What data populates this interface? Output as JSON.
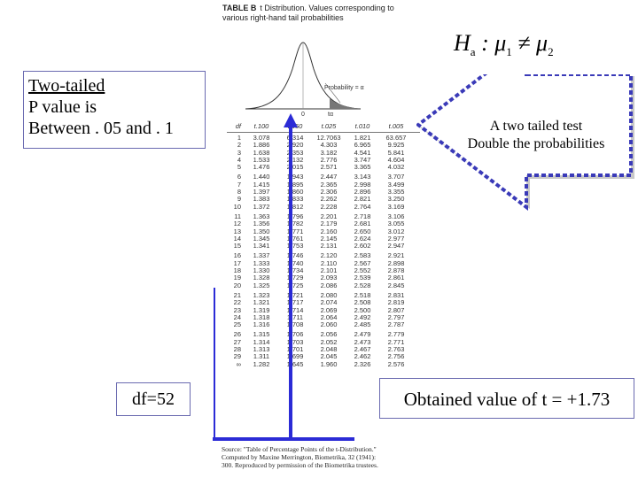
{
  "table_header": {
    "label": "TABLE B",
    "line1": "t Distribution. Values corresponding to",
    "line2": "various right-hand tail probabilities"
  },
  "hypothesis": {
    "h": "H",
    "sub_a": "a",
    "rest": " : μ",
    "sub_1": "1",
    "neq": " ≠ μ",
    "sub_2": "2"
  },
  "curve": {
    "prob_label": "Probability = α",
    "zero": "0",
    "t_alpha": "tα"
  },
  "notes": {
    "line1": "Two-tailed",
    "line2": "P value is",
    "line3": "Between . 05 and . 1"
  },
  "df_box": "df=52",
  "arrow_text": {
    "line1": "A two tailed test",
    "line2": "Double the probabilities"
  },
  "obtained": "Obtained value of t = +1.73",
  "t_table": {
    "headers": [
      "df",
      "t.100",
      "t.050",
      "t.025",
      "t.010",
      "t.005"
    ],
    "rows": [
      [
        "1",
        "3.078",
        "6.314",
        "12.7063",
        "1.821",
        "63.657"
      ],
      [
        "2",
        "1.886",
        "2.920",
        "4.303",
        "6.965",
        "9.925"
      ],
      [
        "3",
        "1.638",
        "2.353",
        "3.182",
        "4.541",
        "5.841"
      ],
      [
        "4",
        "1.533",
        "2.132",
        "2.776",
        "3.747",
        "4.604"
      ],
      [
        "5",
        "1.476",
        "2.015",
        "2.571",
        "3.365",
        "4.032"
      ],
      [
        "6",
        "1.440",
        "1.943",
        "2.447",
        "3.143",
        "3.707"
      ],
      [
        "7",
        "1.415",
        "1.895",
        "2.365",
        "2.998",
        "3.499"
      ],
      [
        "8",
        "1.397",
        "1.860",
        "2.306",
        "2.896",
        "3.355"
      ],
      [
        "9",
        "1.383",
        "1.833",
        "2.262",
        "2.821",
        "3.250"
      ],
      [
        "10",
        "1.372",
        "1.812",
        "2.228",
        "2.764",
        "3.169"
      ],
      [
        "11",
        "1.363",
        "1.796",
        "2.201",
        "2.718",
        "3.106"
      ],
      [
        "12",
        "1.356",
        "1.782",
        "2.179",
        "2.681",
        "3.055"
      ],
      [
        "13",
        "1.350",
        "1.771",
        "2.160",
        "2.650",
        "3.012"
      ],
      [
        "14",
        "1.345",
        "1.761",
        "2.145",
        "2.624",
        "2.977"
      ],
      [
        "15",
        "1.341",
        "1.753",
        "2.131",
        "2.602",
        "2.947"
      ],
      [
        "16",
        "1.337",
        "1.746",
        "2.120",
        "2.583",
        "2.921"
      ],
      [
        "17",
        "1.333",
        "1.740",
        "2.110",
        "2.567",
        "2.898"
      ],
      [
        "18",
        "1.330",
        "1.734",
        "2.101",
        "2.552",
        "2.878"
      ],
      [
        "19",
        "1.328",
        "1.729",
        "2.093",
        "2.539",
        "2.861"
      ],
      [
        "20",
        "1.325",
        "1.725",
        "2.086",
        "2.528",
        "2.845"
      ],
      [
        "21",
        "1.323",
        "1.721",
        "2.080",
        "2.518",
        "2.831"
      ],
      [
        "22",
        "1.321",
        "1.717",
        "2.074",
        "2.508",
        "2.819"
      ],
      [
        "23",
        "1.319",
        "1.714",
        "2.069",
        "2.500",
        "2.807"
      ],
      [
        "24",
        "1.318",
        "1.711",
        "2.064",
        "2.492",
        "2.797"
      ],
      [
        "25",
        "1.316",
        "1.708",
        "2.060",
        "2.485",
        "2.787"
      ],
      [
        "26",
        "1.315",
        "1.706",
        "2.056",
        "2.479",
        "2.779"
      ],
      [
        "27",
        "1.314",
        "1.703",
        "2.052",
        "2.473",
        "2.771"
      ],
      [
        "28",
        "1.313",
        "1.701",
        "2.048",
        "2.467",
        "2.763"
      ],
      [
        "29",
        "1.311",
        "1.699",
        "2.045",
        "2.462",
        "2.756"
      ],
      [
        "∞",
        "1.282",
        "1.645",
        "1.960",
        "2.326",
        "2.576"
      ]
    ]
  },
  "source": {
    "line1": "Source: \"Table of Percentage Points of the t-Distribution.\"",
    "line2": "Computed by Maxine Merrington, Biometrika, 32 (1941):",
    "line3": "300. Reproduced by permission of the Biometrika trustees."
  },
  "colors": {
    "highlight_blue": "#2b2bd6",
    "arrow_dash": "#3a3ab8",
    "arrow_fill": "#c8c8c8",
    "box_border": "#6a6ab0"
  }
}
